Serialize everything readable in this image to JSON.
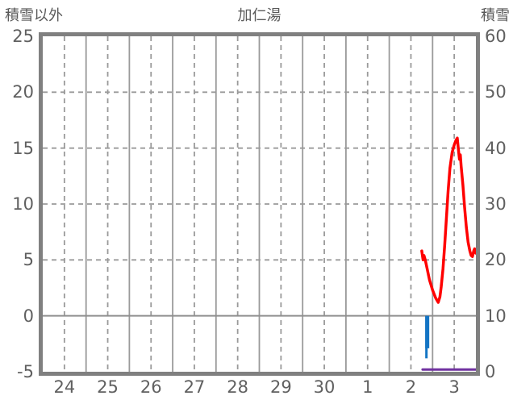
{
  "chart_data": {
    "type": "line",
    "title": "加仁湯",
    "left_axis": {
      "title": "積雪以外",
      "ticks": [
        25,
        20,
        15,
        10,
        5,
        0,
        -5
      ],
      "min": -5,
      "max": 25,
      "zero_line": 0
    },
    "right_axis": {
      "title": "積雪",
      "ticks": [
        60,
        50,
        40,
        30,
        20,
        10,
        0
      ],
      "min": 0,
      "max": 60
    },
    "x_axis": {
      "labels": [
        "24",
        "25",
        "26",
        "27",
        "28",
        "29",
        "30",
        "1",
        "2",
        "3"
      ],
      "days": 10,
      "grid": "solid lines at day boundaries, dashed lines at midday"
    },
    "colors": {
      "temperature": "#ff0000",
      "precipitation": "#1475c4",
      "snow_depth": "#7031a0",
      "frame": "#808080",
      "grid": "#9a9a9a",
      "text": "#5f5f5f"
    },
    "series": [
      {
        "name": "temperature-line",
        "axis": "left",
        "type": "line",
        "color": "#ff0000",
        "width": 3.5,
        "points": [
          [
            8.75,
            5.8
          ],
          [
            8.78,
            5.0
          ],
          [
            8.8,
            5.4
          ],
          [
            8.83,
            5.0
          ],
          [
            8.87,
            4.3
          ],
          [
            8.93,
            3.2
          ],
          [
            9.0,
            2.3
          ],
          [
            9.07,
            1.6
          ],
          [
            9.13,
            1.2
          ],
          [
            9.17,
            1.7
          ],
          [
            9.2,
            2.6
          ],
          [
            9.24,
            4.2
          ],
          [
            9.28,
            6.3
          ],
          [
            9.32,
            8.8
          ],
          [
            9.36,
            11.2
          ],
          [
            9.4,
            13.2
          ],
          [
            9.45,
            14.6
          ],
          [
            9.5,
            15.3
          ],
          [
            9.54,
            15.7
          ],
          [
            9.57,
            15.9
          ],
          [
            9.59,
            15.1
          ],
          [
            9.62,
            14.0
          ],
          [
            9.64,
            14.4
          ],
          [
            9.66,
            13.4
          ],
          [
            9.7,
            11.7
          ],
          [
            9.74,
            9.7
          ],
          [
            9.78,
            7.9
          ],
          [
            9.82,
            6.6
          ],
          [
            9.86,
            5.8
          ],
          [
            9.89,
            5.4
          ],
          [
            9.92,
            5.3
          ],
          [
            9.95,
            5.8
          ],
          [
            9.97,
            6.0
          ],
          [
            9.99,
            5.8
          ],
          [
            10.0,
            5.6
          ]
        ]
      },
      {
        "name": "precipitation-bars",
        "axis": "left",
        "type": "bar",
        "color": "#1475c4",
        "bars": [
          {
            "t": 8.83,
            "w": 5,
            "v": -2.9
          },
          {
            "t": 8.83,
            "w": 3,
            "v": -3.8
          }
        ]
      },
      {
        "name": "snow-depth-line",
        "axis": "right",
        "type": "line",
        "color": "#7031a0",
        "width": 3,
        "points": [
          [
            8.77,
            0.4
          ],
          [
            10.0,
            0.4
          ]
        ]
      }
    ]
  }
}
